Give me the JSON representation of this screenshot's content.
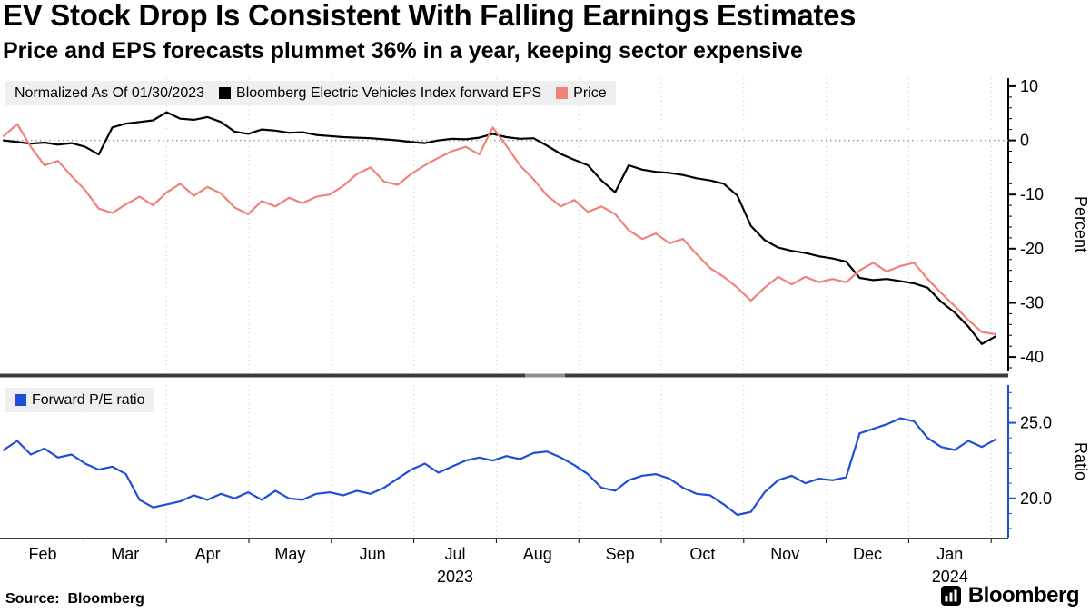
{
  "header": {
    "title": "EV Stock Drop Is Consistent With Falling Earnings Estimates",
    "subtitle": "Price and EPS forecasts plummet 36% in a year, keeping sector expensive"
  },
  "legend_top": {
    "note": "Normalized As Of 01/30/2023",
    "items": [
      {
        "label": "Bloomberg Electric Vehicles Index forward EPS",
        "color": "#000000"
      },
      {
        "label": "Price",
        "color": "#f0827c"
      }
    ]
  },
  "legend_bottom": {
    "items": [
      {
        "label": "Forward P/E ratio",
        "color": "#1e4fd8"
      }
    ]
  },
  "x_axis": {
    "months": [
      "Feb",
      "Mar",
      "Apr",
      "May",
      "Jun",
      "Jul",
      "Aug",
      "Sep",
      "Oct",
      "Nov",
      "Dec",
      "Jan"
    ],
    "year_labels": [
      {
        "text": "2023",
        "under": "Jul"
      },
      {
        "text": "2024",
        "under": "Jan"
      }
    ]
  },
  "footer": {
    "source": "Source:  Bloomberg",
    "brand": "Bloomberg"
  },
  "icons": {
    "brand_icon": "bloomberg-bars-icon"
  },
  "colors": {
    "grid": "#c9c9c9",
    "zero_line": "#9a9a9a",
    "divider": "#3c3c3c",
    "divider_handle": "#909090"
  },
  "chart_data": [
    {
      "type": "line",
      "title": "Normalized As Of 01/30/2023",
      "ylabel": "Percent",
      "ylim": [
        -42.5,
        11.5
      ],
      "yticks": [
        {
          "v": 10,
          "label": "10"
        },
        {
          "v": 0,
          "label": "0"
        },
        {
          "v": -10,
          "label": "-10"
        },
        {
          "v": -20,
          "label": "-20"
        },
        {
          "v": -30,
          "label": "-30"
        },
        {
          "v": -40,
          "label": "-40"
        }
      ],
      "minor_tick_step": 2,
      "zero_line": true,
      "axis_color": "#000000",
      "grid": "vertical-dotted",
      "legend_position": "top-left",
      "x_note": "74 evenly spaced samples from 01/30/2023 to mid-Jan 2024",
      "series": [
        {
          "name": "Bloomberg Electric Vehicles Index forward EPS",
          "color": "#000000",
          "values": [
            0,
            -0.3,
            -0.6,
            -0.4,
            -0.8,
            -0.5,
            -1.2,
            -2.6,
            2.4,
            3.1,
            3.4,
            3.7,
            5.2,
            4.0,
            3.8,
            4.3,
            3.4,
            1.6,
            1.2,
            2.0,
            1.8,
            1.4,
            1.5,
            1.0,
            0.8,
            0.6,
            0.5,
            0.4,
            0.2,
            0.0,
            -0.3,
            -0.5,
            0.0,
            0.3,
            0.2,
            0.5,
            1.2,
            0.6,
            0.3,
            0.4,
            -1.0,
            -2.5,
            -3.6,
            -4.6,
            -7.4,
            -9.6,
            -4.6,
            -5.4,
            -5.8,
            -6.0,
            -6.4,
            -7.0,
            -7.4,
            -8.0,
            -10.2,
            -15.8,
            -18.4,
            -19.8,
            -20.4,
            -20.8,
            -21.4,
            -21.8,
            -22.4,
            -25.4,
            -25.8,
            -25.6,
            -26.0,
            -26.4,
            -27.2,
            -29.8,
            -31.8,
            -34.4,
            -37.6,
            -36.2
          ]
        },
        {
          "name": "Price",
          "color": "#f0827c",
          "values": [
            0.8,
            3.0,
            -1.2,
            -4.6,
            -3.8,
            -6.6,
            -9.2,
            -12.6,
            -13.4,
            -11.8,
            -10.4,
            -12.0,
            -9.6,
            -8.0,
            -10.2,
            -8.6,
            -9.8,
            -12.4,
            -13.6,
            -11.2,
            -12.2,
            -10.6,
            -11.6,
            -10.4,
            -10.0,
            -8.4,
            -6.2,
            -5.0,
            -7.6,
            -8.2,
            -6.2,
            -4.6,
            -3.2,
            -2.0,
            -1.2,
            -2.6,
            2.4,
            -1.0,
            -4.6,
            -7.2,
            -10.2,
            -12.2,
            -11.0,
            -13.2,
            -12.2,
            -13.6,
            -16.6,
            -18.2,
            -17.2,
            -19.0,
            -18.2,
            -21.0,
            -23.6,
            -25.2,
            -27.2,
            -29.6,
            -27.2,
            -25.2,
            -26.6,
            -25.2,
            -26.2,
            -25.6,
            -26.2,
            -24.0,
            -22.6,
            -24.2,
            -23.2,
            -22.6,
            -25.6,
            -28.2,
            -30.6,
            -33.2,
            -35.4,
            -35.8
          ]
        }
      ]
    },
    {
      "type": "line",
      "title": "Forward P/E ratio",
      "ylabel": "Ratio",
      "ylim": [
        17.4,
        27.5
      ],
      "yticks": [
        {
          "v": 25,
          "label": "25.0"
        },
        {
          "v": 20,
          "label": "20.0"
        }
      ],
      "minor_tick_step": 1,
      "zero_line": false,
      "axis_color": "#1e4fd8",
      "grid": "vertical-dotted",
      "legend_position": "top-left",
      "series": [
        {
          "name": "Forward P/E ratio",
          "color": "#1e4fd8",
          "values": [
            23.2,
            23.8,
            22.9,
            23.3,
            22.7,
            22.9,
            22.3,
            21.9,
            22.1,
            21.6,
            19.9,
            19.4,
            19.6,
            19.8,
            20.2,
            19.9,
            20.3,
            20.0,
            20.4,
            19.9,
            20.5,
            20.0,
            19.9,
            20.3,
            20.4,
            20.2,
            20.5,
            20.3,
            20.7,
            21.3,
            21.9,
            22.3,
            21.7,
            22.1,
            22.5,
            22.7,
            22.5,
            22.8,
            22.6,
            23.0,
            23.1,
            22.7,
            22.2,
            21.6,
            20.7,
            20.5,
            21.2,
            21.5,
            21.6,
            21.3,
            20.7,
            20.3,
            20.2,
            19.6,
            18.9,
            19.1,
            20.4,
            21.2,
            21.5,
            21.0,
            21.3,
            21.2,
            21.4,
            24.3,
            24.6,
            24.9,
            25.3,
            25.1,
            24.0,
            23.4,
            23.2,
            23.8,
            23.4,
            23.9
          ]
        }
      ]
    }
  ]
}
